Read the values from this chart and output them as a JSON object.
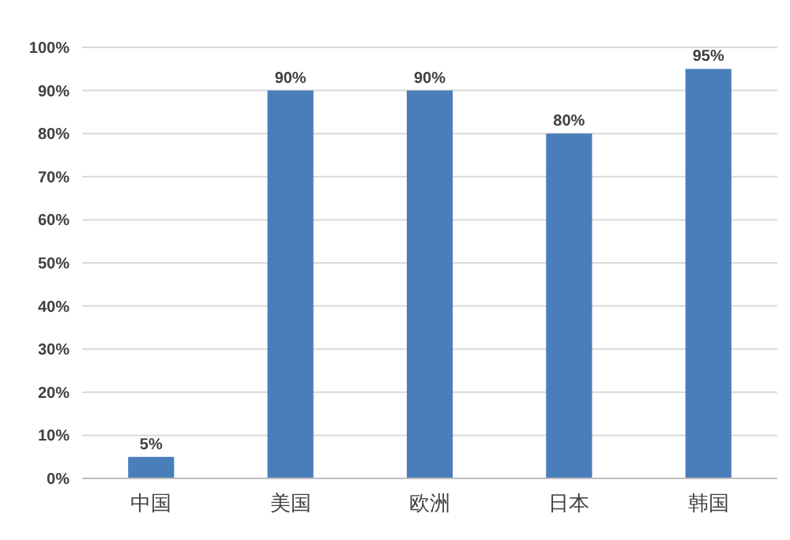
{
  "chart_data": {
    "type": "bar",
    "categories": [
      "中国",
      "美国",
      "欧洲",
      "日本",
      "韩国"
    ],
    "values": [
      5,
      90,
      90,
      80,
      95
    ],
    "value_labels": [
      "5%",
      "90%",
      "90%",
      "80%",
      "95%"
    ],
    "color": "#4a7ebb",
    "ylim": [
      0,
      100
    ],
    "yticks": [
      {
        "value": 0,
        "label": "0%"
      },
      {
        "value": 10,
        "label": "10%"
      },
      {
        "value": 20,
        "label": "20%"
      },
      {
        "value": 30,
        "label": "30%"
      },
      {
        "value": 40,
        "label": "40%"
      },
      {
        "value": 50,
        "label": "50%"
      },
      {
        "value": 60,
        "label": "60%"
      },
      {
        "value": 70,
        "label": "70%"
      },
      {
        "value": 80,
        "label": "80%"
      },
      {
        "value": 90,
        "label": "90%"
      },
      {
        "value": 100,
        "label": "100%"
      }
    ],
    "grid": "y"
  }
}
